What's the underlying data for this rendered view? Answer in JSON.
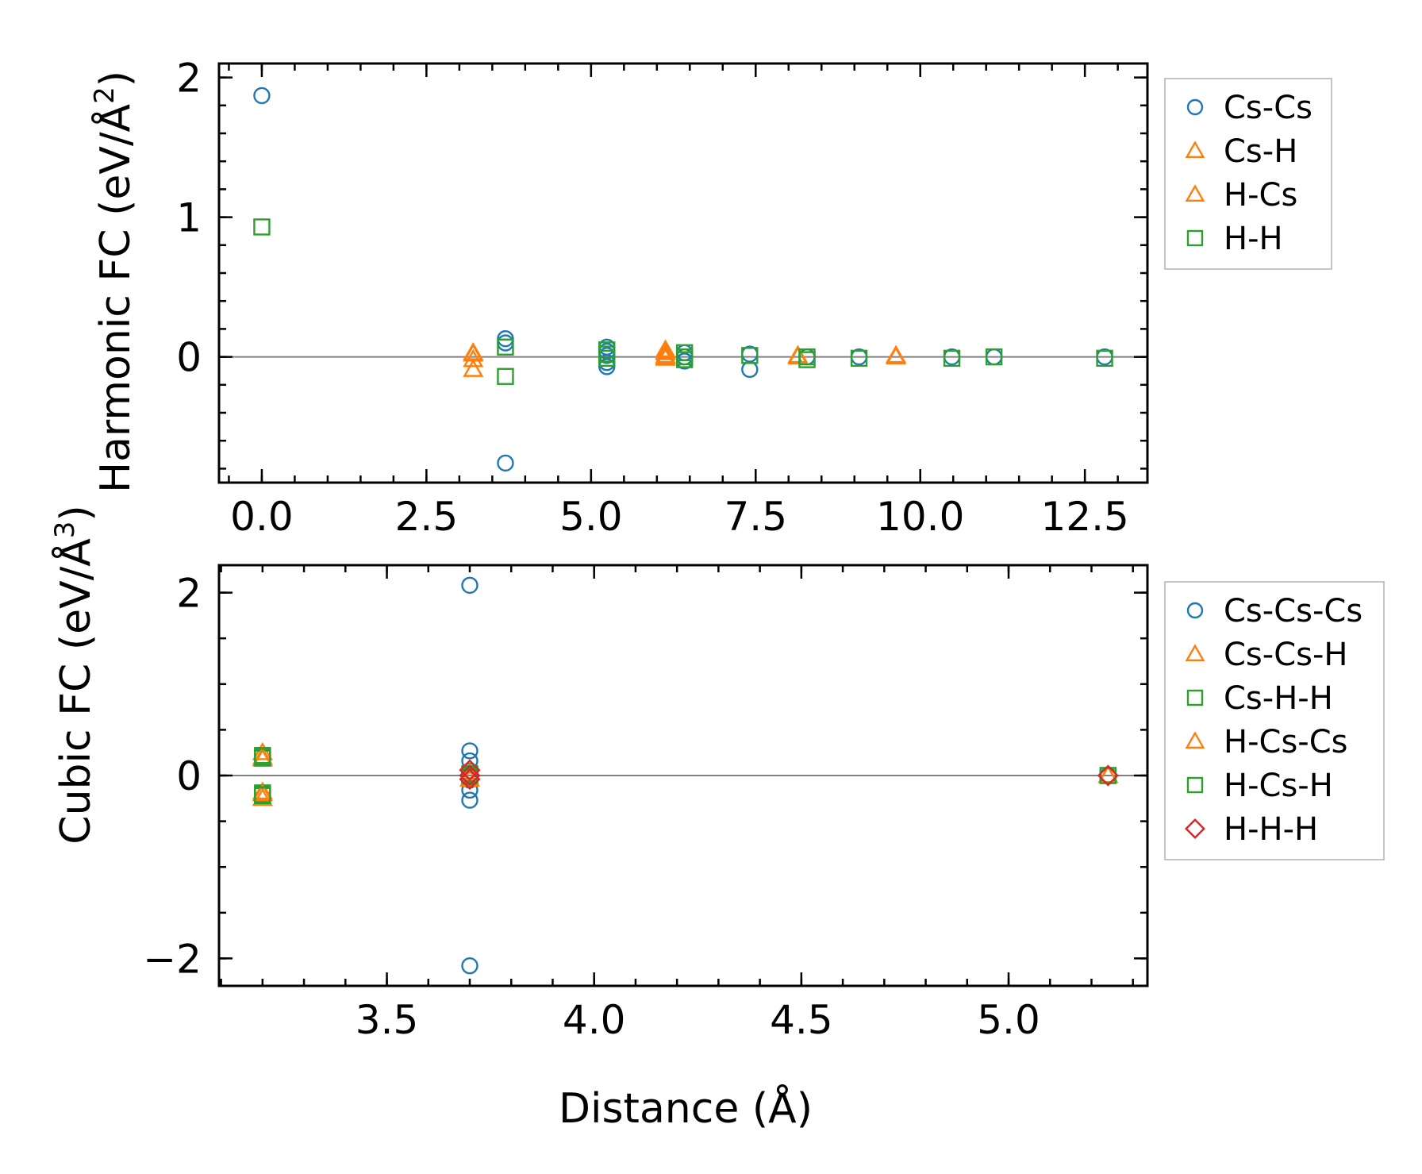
{
  "colors": {
    "blue": "#1f77b4",
    "orange": "#ff7f0e",
    "green": "#2ca02c",
    "red": "#d62728",
    "zero_line": "#808080",
    "legend_border": "#b0b0b0"
  },
  "chart_data": [
    {
      "type": "scatter",
      "panel": "top",
      "ylabel_main": "Harmonic FC (eV/Å",
      "ylabel_sup": "2",
      "ylabel_end": ")",
      "xlabel": "",
      "xlim": [
        -0.65,
        13.45
      ],
      "ylim": [
        -0.9,
        2.1
      ],
      "xticks": [
        0.0,
        2.5,
        5.0,
        7.5,
        10.0,
        12.5
      ],
      "xtick_labels": [
        "0.0",
        "2.5",
        "5.0",
        "7.5",
        "10.0",
        "12.5"
      ],
      "yticks": [
        0,
        1,
        2
      ],
      "ytick_labels": [
        "0",
        "1",
        "2"
      ],
      "zero_line": true,
      "legend_position": "right",
      "series": [
        {
          "name": "Cs-Cs",
          "marker": "circle",
          "color": "blue",
          "points": [
            [
              0.0,
              1.87
            ],
            [
              3.7,
              0.13
            ],
            [
              3.7,
              0.1
            ],
            [
              3.7,
              -0.76
            ],
            [
              5.24,
              0.07
            ],
            [
              5.24,
              0.04
            ],
            [
              5.24,
              0.01
            ],
            [
              5.24,
              -0.04
            ],
            [
              5.24,
              -0.07
            ],
            [
              6.42,
              0.03
            ],
            [
              6.42,
              0.0
            ],
            [
              6.42,
              -0.03
            ],
            [
              7.41,
              0.02
            ],
            [
              7.41,
              -0.09
            ],
            [
              8.28,
              0.0
            ],
            [
              9.07,
              0.0
            ],
            [
              10.48,
              0.0
            ],
            [
              11.12,
              0.0
            ],
            [
              12.8,
              0.0
            ]
          ]
        },
        {
          "name": "Cs-H",
          "marker": "triangle",
          "color": "orange",
          "points": [
            [
              3.21,
              0.03
            ],
            [
              3.21,
              -0.02
            ],
            [
              3.21,
              -0.09
            ],
            [
              6.13,
              0.05
            ],
            [
              6.13,
              0.03
            ],
            [
              6.13,
              0.01
            ],
            [
              6.13,
              -0.01
            ],
            [
              8.14,
              0.01
            ],
            [
              9.63,
              0.01
            ]
          ]
        },
        {
          "name": "H-Cs",
          "marker": "triangle",
          "color": "orange",
          "points": [
            [
              3.21,
              0.02
            ],
            [
              6.13,
              0.04
            ],
            [
              6.13,
              0.0
            ],
            [
              8.14,
              0.0
            ],
            [
              9.63,
              0.0
            ]
          ]
        },
        {
          "name": "H-H",
          "marker": "square",
          "color": "green",
          "points": [
            [
              0.0,
              0.93
            ],
            [
              3.7,
              0.07
            ],
            [
              3.7,
              -0.14
            ],
            [
              5.24,
              0.05
            ],
            [
              5.24,
              0.02
            ],
            [
              5.24,
              -0.01
            ],
            [
              6.42,
              0.03
            ],
            [
              6.42,
              0.0
            ],
            [
              6.42,
              -0.02
            ],
            [
              7.41,
              0.01
            ],
            [
              8.28,
              0.0
            ],
            [
              8.28,
              -0.02
            ],
            [
              9.07,
              -0.01
            ],
            [
              10.48,
              -0.01
            ],
            [
              11.12,
              0.0
            ],
            [
              12.8,
              -0.01
            ]
          ]
        }
      ]
    },
    {
      "type": "scatter",
      "panel": "bottom",
      "ylabel_main": "Cubic FC (eV/Å",
      "ylabel_sup": "3",
      "ylabel_end": ")",
      "xlabel": "Distance (Å)",
      "xlim": [
        3.095,
        5.335
      ],
      "ylim": [
        -2.3,
        2.3
      ],
      "xticks": [
        3.5,
        4.0,
        4.5,
        5.0
      ],
      "xtick_labels": [
        "3.5",
        "4.0",
        "4.5",
        "5.0"
      ],
      "yticks": [
        -2,
        0,
        2
      ],
      "ytick_labels": [
        "−2",
        "0",
        "2"
      ],
      "zero_line": true,
      "legend_position": "right",
      "series": [
        {
          "name": "Cs-Cs-Cs",
          "marker": "circle",
          "color": "blue",
          "points": [
            [
              3.7,
              2.08
            ],
            [
              3.7,
              0.27
            ],
            [
              3.7,
              0.16
            ],
            [
              3.7,
              0.05
            ],
            [
              3.7,
              -0.05
            ],
            [
              3.7,
              -0.16
            ],
            [
              3.7,
              -0.27
            ],
            [
              3.7,
              -2.08
            ],
            [
              5.24,
              0.0
            ]
          ]
        },
        {
          "name": "Cs-Cs-H",
          "marker": "triangle",
          "color": "orange",
          "points": [
            [
              3.2,
              0.25
            ],
            [
              3.2,
              0.18
            ],
            [
              3.2,
              -0.18
            ],
            [
              3.2,
              -0.25
            ],
            [
              3.7,
              0.03
            ],
            [
              5.24,
              0.0
            ]
          ]
        },
        {
          "name": "Cs-H-H",
          "marker": "square",
          "color": "green",
          "points": [
            [
              3.2,
              0.22
            ],
            [
              3.2,
              0.19
            ],
            [
              3.2,
              -0.19
            ],
            [
              3.2,
              -0.22
            ],
            [
              3.7,
              0.02
            ],
            [
              3.7,
              -0.02
            ],
            [
              5.24,
              0.0
            ]
          ]
        },
        {
          "name": "H-Cs-Cs",
          "marker": "triangle",
          "color": "orange",
          "points": [
            [
              3.2,
              0.2
            ],
            [
              3.2,
              -0.2
            ],
            [
              3.7,
              -0.04
            ],
            [
              5.24,
              0.0
            ]
          ]
        },
        {
          "name": "H-Cs-H",
          "marker": "square",
          "color": "green",
          "points": [
            [
              3.2,
              0.21
            ],
            [
              3.2,
              -0.21
            ],
            [
              3.7,
              0.0
            ],
            [
              5.24,
              0.0
            ]
          ]
        },
        {
          "name": "H-H-H",
          "marker": "diamond",
          "color": "red",
          "points": [
            [
              3.7,
              0.06
            ],
            [
              3.7,
              0.0
            ],
            [
              3.7,
              -0.04
            ],
            [
              5.24,
              0.0
            ]
          ]
        }
      ]
    }
  ]
}
